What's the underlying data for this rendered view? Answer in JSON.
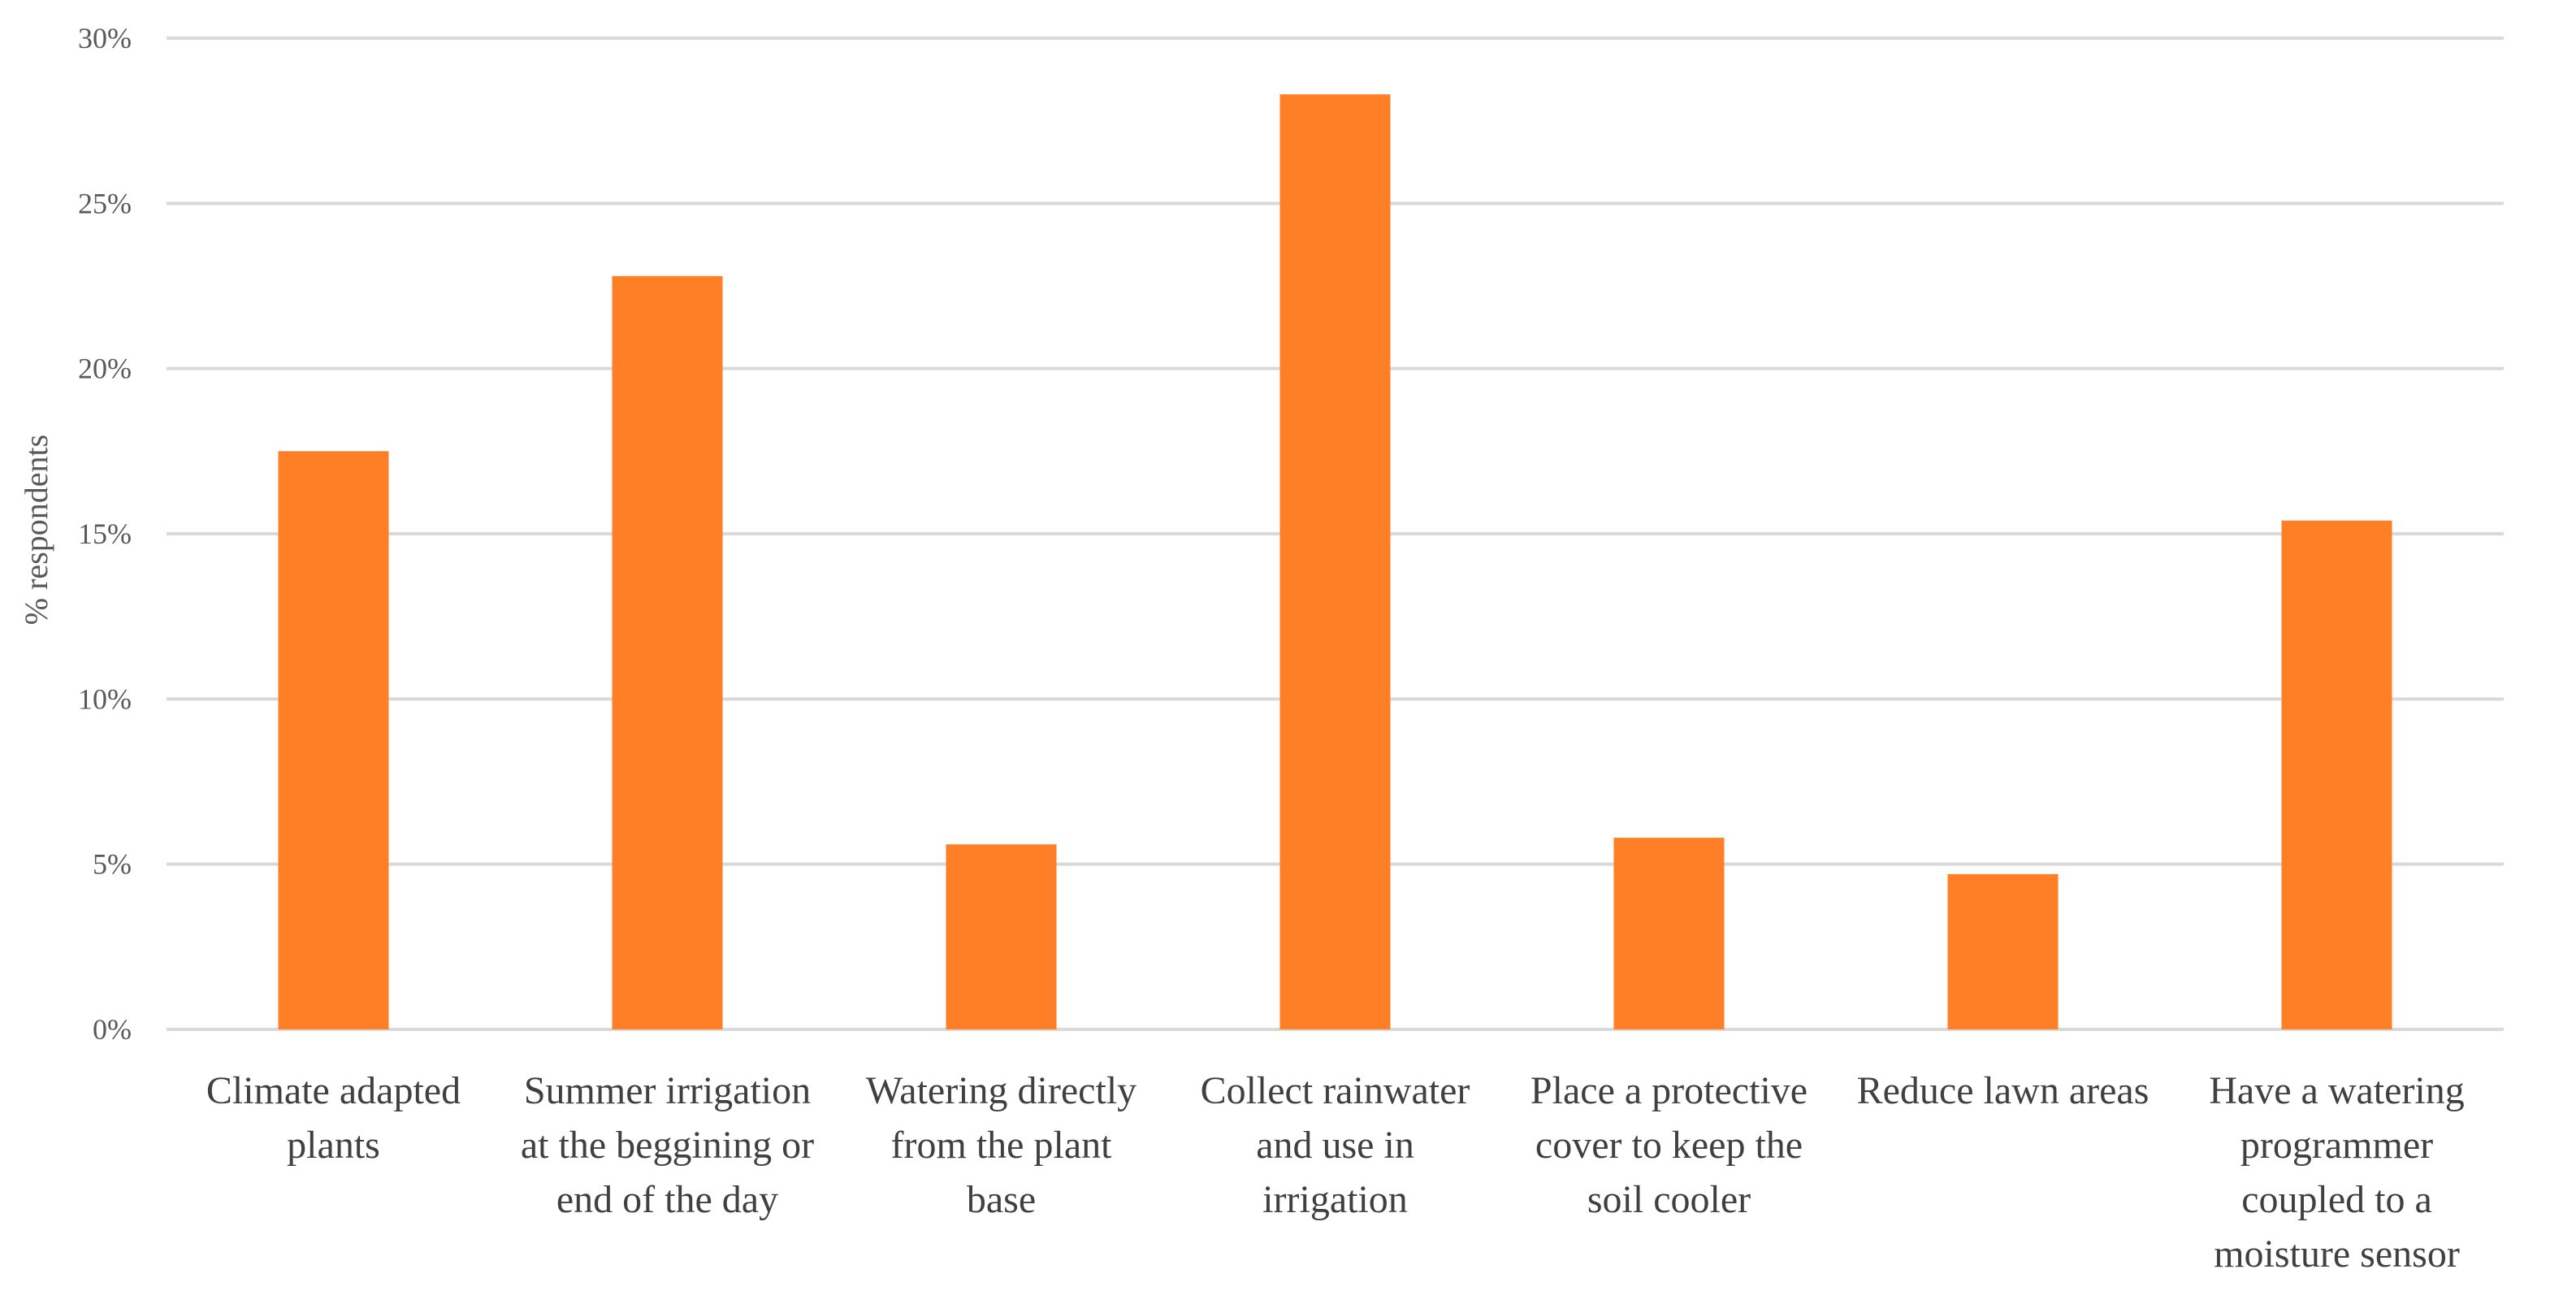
{
  "chart_data": {
    "type": "bar",
    "title": "",
    "xlabel": "",
    "ylabel": "% respondents",
    "ylim": [
      0,
      30
    ],
    "yticks": [
      "0%",
      "5%",
      "10%",
      "15%",
      "20%",
      "25%",
      "30%"
    ],
    "grid": true,
    "legend": "none",
    "color": "#FF7F27",
    "categories": [
      [
        "Climate adapted",
        "plants"
      ],
      [
        "Summer irrigation",
        "at the beggining or",
        "end of the day"
      ],
      [
        "Watering directly",
        "from the plant",
        "base"
      ],
      [
        "Collect rainwater",
        "and use in",
        "irrigation"
      ],
      [
        "Place a protective",
        "cover to keep the",
        "soil cooler"
      ],
      [
        "Reduce lawn areas"
      ],
      [
        "Have a watering",
        "programmer",
        "coupled to a",
        "moisture sensor"
      ]
    ],
    "values": [
      17.5,
      22.8,
      5.6,
      28.3,
      5.8,
      4.7,
      15.4
    ]
  }
}
